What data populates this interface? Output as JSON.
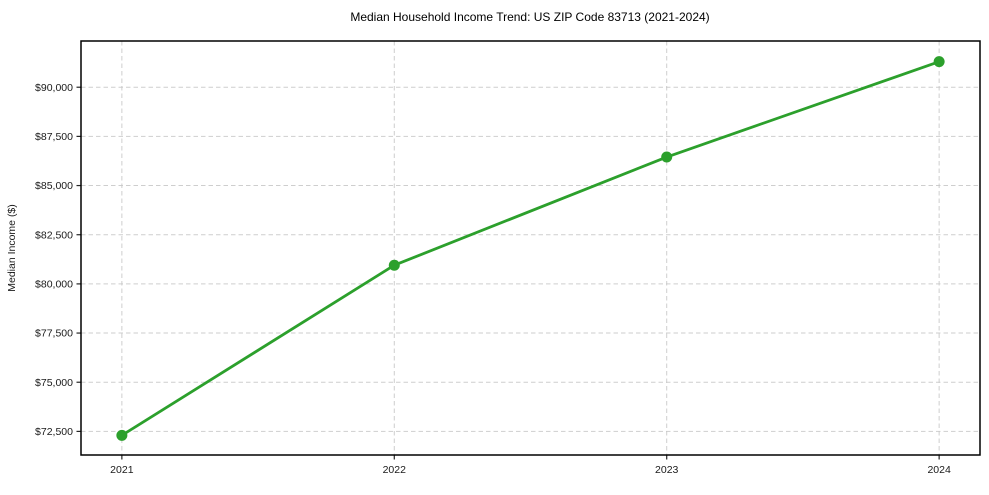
{
  "chart_data": {
    "type": "line",
    "title": "Median Household Income Trend: US ZIP Code 83713 (2021-2024)",
    "xlabel": "",
    "ylabel": "Median Income ($)",
    "categories": [
      2021,
      2022,
      2023,
      2024
    ],
    "values": [
      72300,
      80950,
      86450,
      91300
    ],
    "series": [
      {
        "name": "Median Household Income",
        "values": [
          72300,
          80950,
          86450,
          91300
        ]
      }
    ],
    "xlim": [
      2020.85,
      2024.15
    ],
    "ylim": [
      71300,
      92350
    ],
    "yticks": [
      {
        "value": 72500,
        "label": "$72,500"
      },
      {
        "value": 75000,
        "label": "$75,000"
      },
      {
        "value": 77500,
        "label": "$77,500"
      },
      {
        "value": 80000,
        "label": "$80,000"
      },
      {
        "value": 82500,
        "label": "$82,500"
      },
      {
        "value": 85000,
        "label": "$85,000"
      },
      {
        "value": 87500,
        "label": "$87,500"
      },
      {
        "value": 90000,
        "label": "$90,000"
      }
    ],
    "xticks": [
      {
        "value": 2021,
        "label": "2021"
      },
      {
        "value": 2022,
        "label": "2022"
      },
      {
        "value": 2023,
        "label": "2023"
      },
      {
        "value": 2024,
        "label": "2024"
      }
    ],
    "grid": true,
    "grid_style": "dashed",
    "grid_color": "#c9c9c9",
    "frame_color": "#000000",
    "line_color": "#2ca02c",
    "marker_color": "#2ca02c",
    "marker": "o",
    "legend": "none",
    "background_color": "#ffffff"
  }
}
